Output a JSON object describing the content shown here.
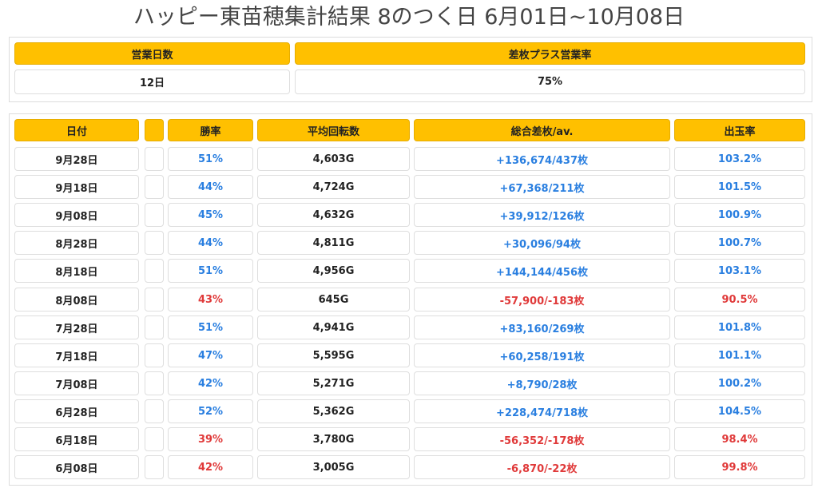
{
  "title": "ハッピー東苗穂集計結果 8のつく日 6月01日~10月08日",
  "summary": {
    "headers": [
      "営業日数",
      "差枚プラス営業率"
    ],
    "values": [
      "12日",
      "75%"
    ]
  },
  "table": {
    "columns": [
      "日付",
      "",
      "勝率",
      "平均回転数",
      "総合差枚/av.",
      "出玉率"
    ],
    "rows": [
      {
        "date": "9月28日",
        "extra": "",
        "win_rate": "51%",
        "avg_spins": "4,603G",
        "total_diff": "+136,674/437枚",
        "payout": "103.2%",
        "sign": "pos"
      },
      {
        "date": "9月18日",
        "extra": "",
        "win_rate": "44%",
        "avg_spins": "4,724G",
        "total_diff": "+67,368/211枚",
        "payout": "101.5%",
        "sign": "pos"
      },
      {
        "date": "9月08日",
        "extra": "",
        "win_rate": "45%",
        "avg_spins": "4,632G",
        "total_diff": "+39,912/126枚",
        "payout": "100.9%",
        "sign": "pos"
      },
      {
        "date": "8月28日",
        "extra": "",
        "win_rate": "44%",
        "avg_spins": "4,811G",
        "total_diff": "+30,096/94枚",
        "payout": "100.7%",
        "sign": "pos"
      },
      {
        "date": "8月18日",
        "extra": "",
        "win_rate": "51%",
        "avg_spins": "4,956G",
        "total_diff": "+144,144/456枚",
        "payout": "103.1%",
        "sign": "pos"
      },
      {
        "date": "8月08日",
        "extra": "",
        "win_rate": "43%",
        "avg_spins": "645G",
        "total_diff": "-57,900/-183枚",
        "payout": "90.5%",
        "sign": "neg"
      },
      {
        "date": "7月28日",
        "extra": "",
        "win_rate": "51%",
        "avg_spins": "4,941G",
        "total_diff": "+83,160/269枚",
        "payout": "101.8%",
        "sign": "pos"
      },
      {
        "date": "7月18日",
        "extra": "",
        "win_rate": "47%",
        "avg_spins": "5,595G",
        "total_diff": "+60,258/191枚",
        "payout": "101.1%",
        "sign": "pos"
      },
      {
        "date": "7月08日",
        "extra": "",
        "win_rate": "42%",
        "avg_spins": "5,271G",
        "total_diff": "+8,790/28枚",
        "payout": "100.2%",
        "sign": "pos"
      },
      {
        "date": "6月28日",
        "extra": "",
        "win_rate": "52%",
        "avg_spins": "5,362G",
        "total_diff": "+228,474/718枚",
        "payout": "104.5%",
        "sign": "pos"
      },
      {
        "date": "6月18日",
        "extra": "",
        "win_rate": "39%",
        "avg_spins": "3,780G",
        "total_diff": "-56,352/-178枚",
        "payout": "98.4%",
        "sign": "neg"
      },
      {
        "date": "6月08日",
        "extra": "",
        "win_rate": "42%",
        "avg_spins": "3,005G",
        "total_diff": "-6,870/-22枚",
        "payout": "99.8%",
        "sign": "neg"
      }
    ]
  },
  "colors": {
    "header_bg": "#ffc000",
    "positive": "#2a7fe0",
    "negative": "#e03a3a"
  }
}
